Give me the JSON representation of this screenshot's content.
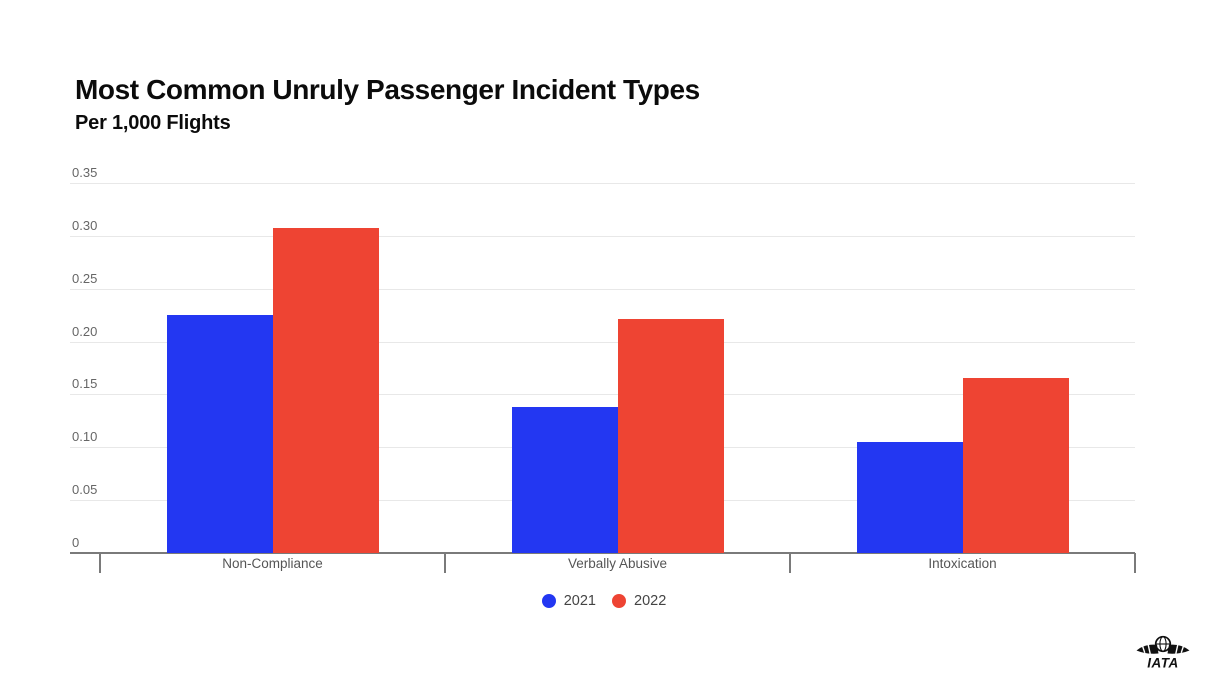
{
  "header": {
    "title": "Most Common Unruly Passenger Incident Types",
    "subtitle": "Per 1,000 Flights"
  },
  "chart_data": {
    "type": "bar",
    "title": "Most Common Unruly Passenger Incident Types",
    "subtitle": "Per 1,000 Flights",
    "categories": [
      "Non-Compliance",
      "Verbally Abusive",
      "Intoxication"
    ],
    "series": [
      {
        "name": "2021",
        "color": "#2337f2",
        "values": [
          0.225,
          0.138,
          0.105
        ]
      },
      {
        "name": "2022",
        "color": "#ee4433",
        "values": [
          0.307,
          0.221,
          0.166
        ]
      }
    ],
    "xlabel": "",
    "ylabel": "",
    "ylim": [
      0,
      0.35
    ],
    "ytick_labels": [
      "0",
      "0.05",
      "0.10",
      "0.15",
      "0.20",
      "0.25",
      "0.30",
      "0.35"
    ],
    "grid": true,
    "legend_position": "bottom"
  },
  "colors": {
    "grid": "#e8e8e8",
    "axis": "#7a7a7a",
    "ytick_label": "#666666",
    "category_label": "#555555",
    "legend_label": "#444444",
    "title": "#0b0b0b",
    "logo": "#111111"
  },
  "footer": {
    "logo_text": "IATA"
  }
}
